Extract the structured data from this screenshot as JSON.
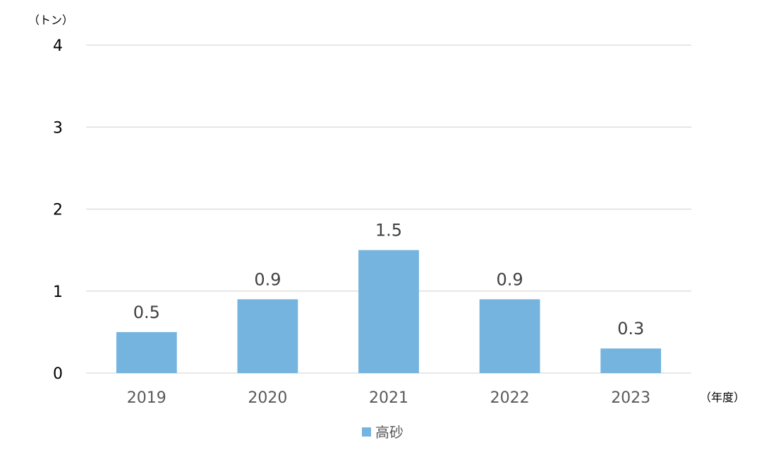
{
  "chart_data": {
    "type": "bar",
    "categories": [
      "2019",
      "2020",
      "2021",
      "2022",
      "2023"
    ],
    "series": [
      {
        "name": "高砂",
        "values": [
          0.5,
          0.9,
          1.5,
          0.9,
          0.3
        ],
        "color": "#74b4de"
      }
    ],
    "data_labels": [
      "0.5",
      "0.9",
      "1.5",
      "0.9",
      "0.3"
    ],
    "y_unit": "（トン）",
    "x_unit": "（年度）",
    "ylim": [
      0,
      4
    ],
    "yticks": [
      "0",
      "1",
      "2",
      "3",
      "4"
    ],
    "grid": true,
    "legend_position": "bottom"
  }
}
